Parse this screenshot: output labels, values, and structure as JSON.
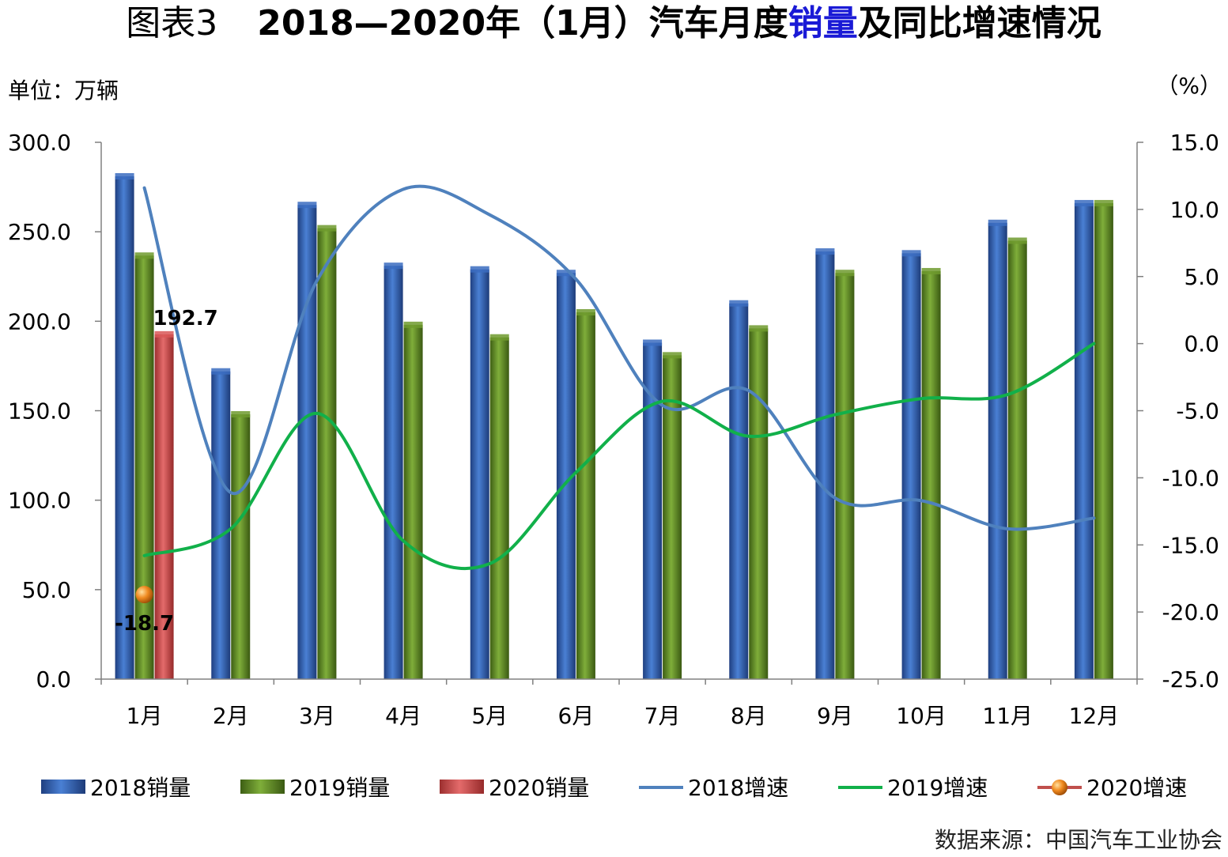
{
  "chart_data": {
    "type": "bar",
    "title": {
      "prefix": "图表3",
      "main_a": "2018—2020年（1月）汽车月度",
      "highlight": "销量",
      "main_b": "及同比增速情况",
      "highlight_color": "#1a1ad6"
    },
    "left_unit": "单位：万辆",
    "right_unit": "（%）",
    "source": "数据来源：中国汽车工业协会",
    "categories": [
      "1月",
      "2月",
      "3月",
      "4月",
      "5月",
      "6月",
      "7月",
      "8月",
      "9月",
      "10月",
      "11月",
      "12月"
    ],
    "y_left": {
      "min": 0,
      "max": 300,
      "step": 50,
      "tick_labels": [
        "0.0",
        "50.0",
        "100.0",
        "150.0",
        "200.0",
        "250.0",
        "300.0"
      ]
    },
    "y_right": {
      "min": -25,
      "max": 15,
      "step": 5,
      "tick_labels": [
        "-25.0",
        "-20.0",
        "-15.0",
        "-10.0",
        "-5.0",
        "0.0",
        "5.0",
        "10.0",
        "15.0"
      ]
    },
    "bar_series": [
      {
        "name": "2018销量",
        "color": "#3b6cc0",
        "values": [
          281,
          172,
          265,
          231,
          229,
          227,
          188,
          210,
          239,
          238,
          255,
          266
        ]
      },
      {
        "name": "2019销量",
        "color": "#6f9a2e",
        "values": [
          236.7,
          148,
          252,
          198,
          191,
          205,
          181,
          196,
          227,
          228,
          245,
          266
        ]
      },
      {
        "name": "2020销量",
        "color": "#d95757",
        "values": [
          192.7,
          null,
          null,
          null,
          null,
          null,
          null,
          null,
          null,
          null,
          null,
          null
        ]
      }
    ],
    "line_series": [
      {
        "name": "2018增速",
        "color": "#4f81bd",
        "values": [
          11.6,
          -11.1,
          4.7,
          11.5,
          9.6,
          4.8,
          -4.6,
          -3.5,
          -11.5,
          -11.7,
          -13.8,
          -13.0
        ]
      },
      {
        "name": "2019增速",
        "color": "#11b04a",
        "values": [
          -15.8,
          -13.8,
          -5.2,
          -14.7,
          -16.4,
          -9.6,
          -4.3,
          -6.9,
          -5.3,
          -4.1,
          -3.8,
          0.0
        ]
      },
      {
        "name": "2020增速",
        "color": "#e07820",
        "marker": "orange-sphere",
        "values": [
          -18.7,
          null,
          null,
          null,
          null,
          null,
          null,
          null,
          null,
          null,
          null,
          null
        ]
      }
    ],
    "data_labels": [
      {
        "series": "2020销量",
        "index": 0,
        "text": "192.7"
      },
      {
        "series": "2020增速",
        "index": 0,
        "text": "-18.7"
      }
    ],
    "grid": false,
    "legend": "bottom"
  }
}
